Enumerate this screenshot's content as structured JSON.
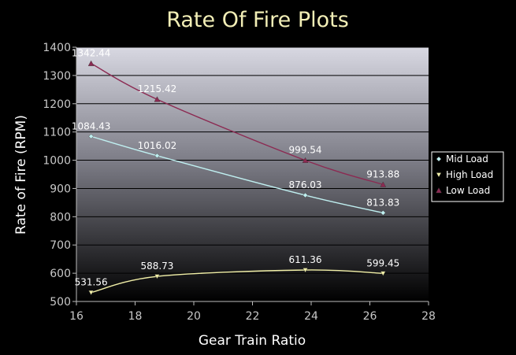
{
  "chart_data": {
    "type": "line",
    "title": "Rate Of Fire Plots",
    "xlabel": "Gear Train Ratio",
    "ylabel": "Rate of Fire (RPM)",
    "xlim": [
      16,
      28
    ],
    "ylim": [
      500,
      1400
    ],
    "xticks": [
      "16",
      "18",
      "20",
      "22",
      "24",
      "26",
      "28"
    ],
    "yticks": [
      "500",
      "600",
      "700",
      "800",
      "900",
      "1000",
      "1100",
      "1200",
      "1300",
      "1400"
    ],
    "grid": "horizontal",
    "legend_position": "right",
    "series": [
      {
        "name": "Mid Load",
        "color": "#bfeff0",
        "marker": "diamond",
        "x": [
          16.5,
          18.75,
          23.8,
          26.45
        ],
        "y": [
          1084.43,
          1016.02,
          876.03,
          813.83
        ],
        "labels": [
          "1084.43",
          "1016.02",
          "876.03",
          "813.83"
        ]
      },
      {
        "name": "High Load",
        "color": "#f2f0a8",
        "marker": "triangle-down",
        "x": [
          16.5,
          18.75,
          23.8,
          26.45
        ],
        "y": [
          531.56,
          588.73,
          611.36,
          599.45
        ],
        "labels": [
          "531.56",
          "588.73",
          "611.36",
          "599.45"
        ]
      },
      {
        "name": "Low Load",
        "color": "#8c2a52",
        "marker": "triangle-up",
        "x": [
          16.5,
          18.75,
          23.8,
          26.45
        ],
        "y": [
          1342.44,
          1215.42,
          999.54,
          913.88
        ],
        "labels": [
          "1342.44",
          "1215.42",
          "999.54",
          "913.88"
        ]
      }
    ]
  }
}
